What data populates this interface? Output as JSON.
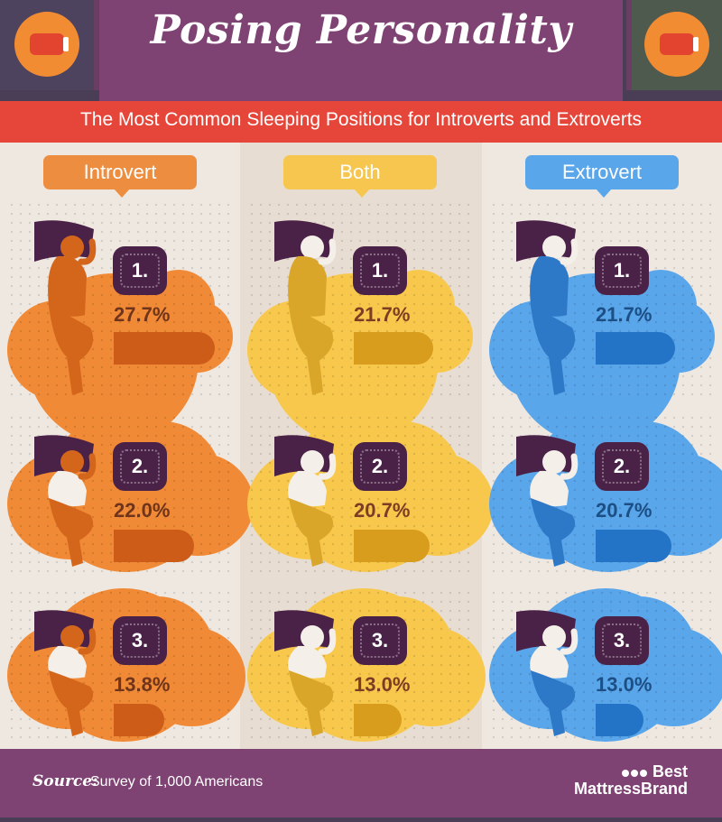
{
  "header": {
    "title": "Posing Personality",
    "subtitle": "The Most Common Sleeping Positions for Introverts and Extroverts"
  },
  "chart_data": {
    "type": "bar",
    "categories": [
      "1.",
      "2.",
      "3."
    ],
    "series": [
      {
        "name": "Introvert",
        "values": [
          27.7,
          22.0,
          13.8
        ],
        "labels": [
          "27.7%",
          "22.0%",
          "13.8%"
        ],
        "color": "#f08a36",
        "dark": "#cc5c18",
        "text": "#70341a"
      },
      {
        "name": "Both",
        "values": [
          21.7,
          20.7,
          13.0
        ],
        "labels": [
          "21.7%",
          "20.7%",
          "13.0%"
        ],
        "color": "#f8c84c",
        "dark": "#d89d1c",
        "text": "#7b3d24"
      },
      {
        "name": "Extrovert",
        "values": [
          21.7,
          20.7,
          13.0
        ],
        "labels": [
          "21.7%",
          "20.7%",
          "13.0%"
        ],
        "color": "#5aa6ea",
        "dark": "#2374c6",
        "text": "#1c4f86"
      }
    ],
    "unit": "%"
  },
  "colors": {
    "header_bg": "#7e4273",
    "subtitle_band": "#e6463a",
    "label_introvert": "#ed8d40",
    "label_both": "#f6c64e",
    "label_extrovert": "#5aa6ea",
    "pillow": "#4b2247",
    "skin_introvert": "#d4661c",
    "skin_both": "#d9a62a",
    "skin_extrovert": "#2e78c8"
  },
  "icons": [
    "pillow-icon",
    "sleeping-figure-icon"
  ],
  "footer": {
    "source_label": "Source:",
    "source_text": "Survey of 1,000 Americans",
    "brand_line1": "Best",
    "brand_line2": "MattressBrand"
  }
}
